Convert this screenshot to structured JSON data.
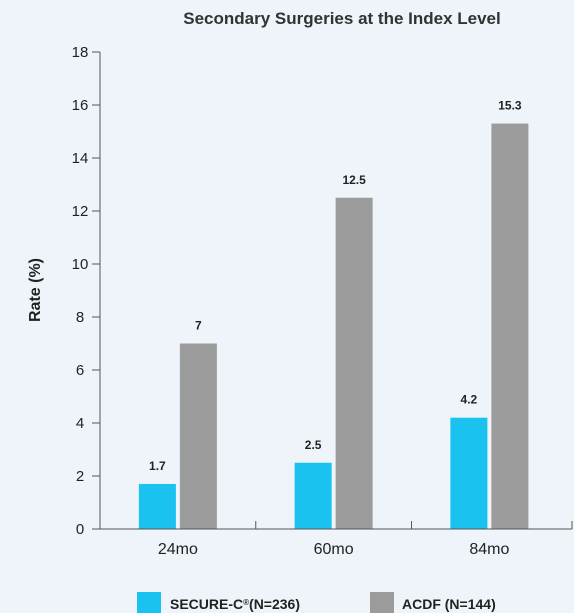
{
  "chart_data": {
    "type": "bar",
    "title": "Secondary Surgeries at the Index Level",
    "xlabel": "",
    "ylabel": "Rate (%)",
    "ylim": [
      0,
      18
    ],
    "yticks": [
      0,
      2,
      4,
      6,
      8,
      10,
      12,
      14,
      16,
      18
    ],
    "categories": [
      "24mo",
      "60mo",
      "84mo"
    ],
    "series": [
      {
        "name": "SECURE-C",
        "name_sup": "®",
        "name_suffix": "(N=236)",
        "color": "#19c2ef",
        "values": [
          1.7,
          2.5,
          4.2
        ],
        "labels": [
          "1.7",
          "2.5",
          "4.2"
        ]
      },
      {
        "name": "ACDF (N=144)",
        "color": "#9b9b9b",
        "values": [
          7,
          12.5,
          15.3
        ],
        "labels": [
          "7",
          "12.5",
          "15.3"
        ]
      }
    ],
    "grid": false,
    "legend": "bottom"
  }
}
